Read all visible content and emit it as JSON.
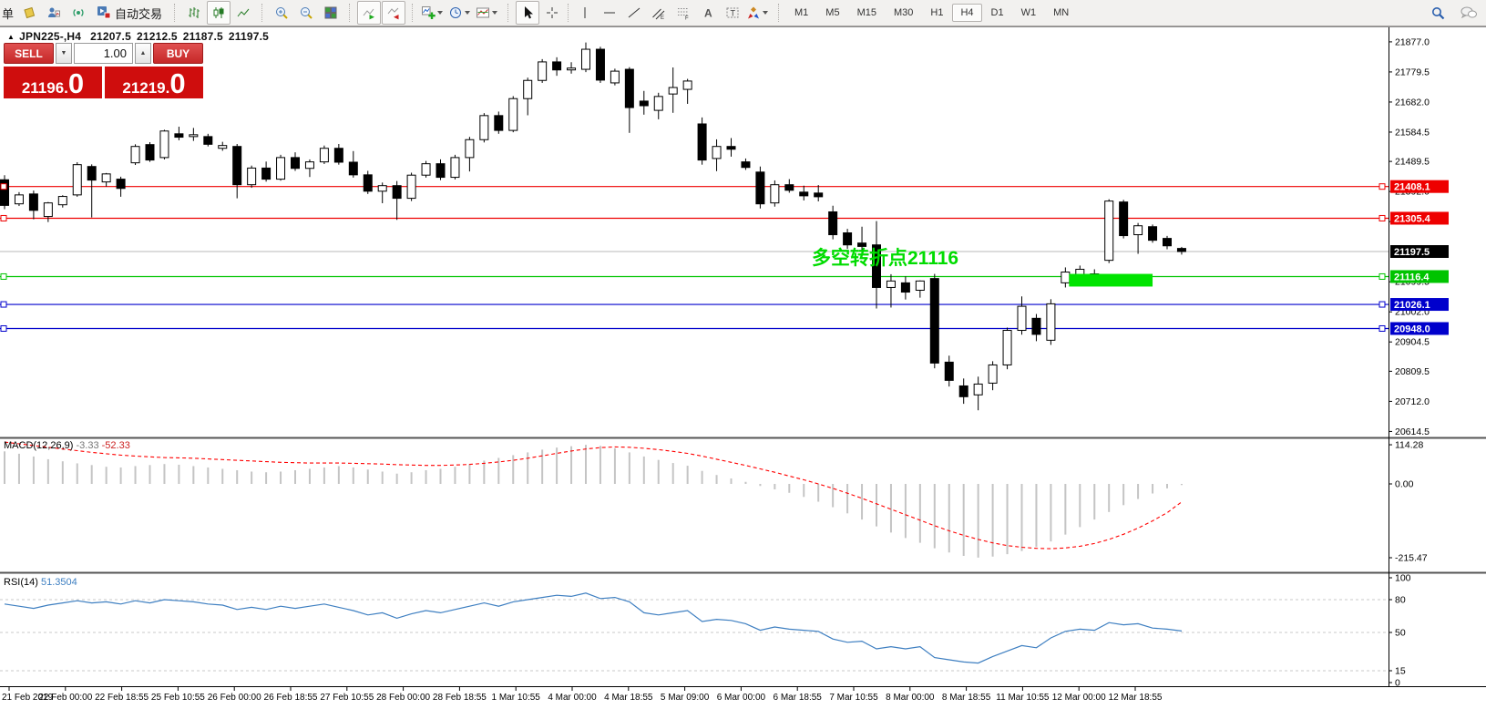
{
  "icons": {
    "title_marker": "▲",
    "spinner_down": "▼",
    "spinner_up": "▲"
  },
  "toolbar": {
    "cropped_button_label": "单",
    "autotrade_label": "自动交易",
    "timeframes": [
      {
        "label": "M1"
      },
      {
        "label": "M5"
      },
      {
        "label": "M15"
      },
      {
        "label": "M30"
      },
      {
        "label": "H1"
      },
      {
        "label": "H4",
        "active": true
      },
      {
        "label": "D1"
      },
      {
        "label": "W1"
      },
      {
        "label": "MN"
      }
    ]
  },
  "chart_header": {
    "symbol": "JPN225-,H4",
    "open": "21207.5",
    "high": "21212.5",
    "low": "21187.5",
    "close": "21197.5"
  },
  "trade_panel": {
    "sell_label": "SELL",
    "buy_label": "BUY",
    "volume": "1.00",
    "sell_price_int": "21196",
    "sell_price_dec": "0",
    "buy_price_int": "21219",
    "buy_price_dec": "0"
  },
  "chart_data": {
    "type": "candlestick",
    "symbol": "JPN225-",
    "timeframe": "H4",
    "main_panel": {
      "ylim": [
        20598,
        21924
      ],
      "price_ticks": [
        21877.0,
        21779.5,
        21682.0,
        21584.5,
        21489.5,
        21392.0,
        21294.5,
        21099.5,
        21002.0,
        20904.5,
        20809.5,
        20712.0,
        20614.5
      ],
      "hlines": [
        {
          "price": 21408.1,
          "label": "21408.1",
          "color": "#ee0000",
          "type": "resistance"
        },
        {
          "price": 21305.4,
          "label": "21305.4",
          "color": "#ee0000",
          "type": "resistance"
        },
        {
          "price": 21197.5,
          "label": "21197.5",
          "color": "#b8b8b8",
          "label_bg": "#000000",
          "type": "bid"
        },
        {
          "price": 21116.4,
          "label": "21116.4",
          "color": "#00c400",
          "type": "pivot"
        },
        {
          "price": 21026.1,
          "label": "21026.1",
          "color": "#0000cc",
          "type": "support"
        },
        {
          "price": 20948.0,
          "label": "20948.0",
          "color": "#0000cc",
          "type": "support"
        }
      ],
      "annotation": {
        "text": "多空转折点21116",
        "color": "#00dc00"
      },
      "highlight_box": {
        "bar_start": 73,
        "bar_end": 79,
        "price_top": 21125,
        "price_bottom": 21084,
        "color": "#00e400"
      },
      "candles_ohlc": [
        [
          21430,
          21445,
          21335,
          21347
        ],
        [
          21352,
          21390,
          21345,
          21381
        ],
        [
          21384,
          21395,
          21302,
          21331
        ],
        [
          21311,
          21358,
          21293,
          21355
        ],
        [
          21349,
          21380,
          21340,
          21376
        ],
        [
          21381,
          21487,
          21375,
          21479
        ],
        [
          21473,
          21480,
          21308,
          21429
        ],
        [
          21423,
          21452,
          21408,
          21449
        ],
        [
          21432,
          21440,
          21375,
          21402
        ],
        [
          21485,
          21545,
          21478,
          21538
        ],
        [
          21544,
          21552,
          21488,
          21494
        ],
        [
          21502,
          21592,
          21496,
          21588
        ],
        [
          21579,
          21602,
          21558,
          21568
        ],
        [
          21570,
          21598,
          21556,
          21576
        ],
        [
          21570,
          21579,
          21538,
          21545
        ],
        [
          21532,
          21553,
          21524,
          21541
        ],
        [
          21538,
          21546,
          21370,
          21414
        ],
        [
          21414,
          21476,
          21404,
          21468
        ],
        [
          21468,
          21489,
          21424,
          21432
        ],
        [
          21432,
          21511,
          21427,
          21502
        ],
        [
          21502,
          21519,
          21459,
          21467
        ],
        [
          21467,
          21496,
          21439,
          21488
        ],
        [
          21488,
          21541,
          21481,
          21532
        ],
        [
          21532,
          21546,
          21479,
          21487
        ],
        [
          21487,
          21523,
          21437,
          21446
        ],
        [
          21446,
          21459,
          21384,
          21393
        ],
        [
          21393,
          21421,
          21354,
          21411
        ],
        [
          21411,
          21426,
          21300,
          21370
        ],
        [
          21370,
          21453,
          21361,
          21445
        ],
        [
          21445,
          21491,
          21437,
          21482
        ],
        [
          21482,
          21496,
          21429,
          21438
        ],
        [
          21438,
          21511,
          21431,
          21502
        ],
        [
          21502,
          21569,
          21457,
          21560
        ],
        [
          21560,
          21646,
          21551,
          21638
        ],
        [
          21638,
          21651,
          21579,
          21590
        ],
        [
          21590,
          21701,
          21584,
          21693
        ],
        [
          21693,
          21761,
          21639,
          21752
        ],
        [
          21752,
          21821,
          21744,
          21812
        ],
        [
          21812,
          21827,
          21767,
          21786
        ],
        [
          21786,
          21811,
          21774,
          21792
        ],
        [
          21788,
          21875,
          21779,
          21853
        ],
        [
          21853,
          21861,
          21744,
          21753
        ],
        [
          21744,
          21790,
          21736,
          21782
        ],
        [
          21788,
          21795,
          21582,
          21664
        ],
        [
          21685,
          21718,
          21641,
          21670
        ],
        [
          21655,
          21712,
          21626,
          21700
        ],
        [
          21708,
          21794,
          21647,
          21729
        ],
        [
          21723,
          21757,
          21676,
          21750
        ],
        [
          21611,
          21632,
          21479,
          21494
        ],
        [
          21499,
          21561,
          21458,
          21538
        ],
        [
          21538,
          21565,
          21505,
          21529
        ],
        [
          21488,
          21499,
          21462,
          21470
        ],
        [
          21455,
          21473,
          21337,
          21352
        ],
        [
          21355,
          21428,
          21343,
          21414
        ],
        [
          21414,
          21432,
          21388,
          21396
        ],
        [
          21390,
          21411,
          21363,
          21378
        ],
        [
          21387,
          21413,
          21360,
          21375
        ],
        [
          21326,
          21346,
          21237,
          21252
        ],
        [
          21258,
          21271,
          21206,
          21219
        ],
        [
          21225,
          21278,
          21175,
          21214
        ],
        [
          21219,
          21296,
          21013,
          21081
        ],
        [
          21081,
          21124,
          21016,
          21102
        ],
        [
          21096,
          21117,
          21042,
          21066
        ],
        [
          21072,
          21104,
          21048,
          21102
        ],
        [
          21110,
          21125,
          20819,
          20836
        ],
        [
          20839,
          20860,
          20760,
          20780
        ],
        [
          20762,
          20786,
          20704,
          20727
        ],
        [
          20733,
          20792,
          20683,
          20768
        ],
        [
          20771,
          20842,
          20748,
          20830
        ],
        [
          20830,
          20951,
          20816,
          20942
        ],
        [
          20942,
          21052,
          20928,
          21020
        ],
        [
          20981,
          20995,
          20907,
          20929
        ],
        [
          20910,
          21043,
          20895,
          21028
        ],
        [
          21096,
          21146,
          21081,
          21131
        ],
        [
          21120,
          21152,
          21096,
          21140
        ],
        [
          21125,
          21140,
          21100,
          21112
        ],
        [
          21169,
          21367,
          21160,
          21361
        ],
        [
          21358,
          21365,
          21240,
          21249
        ],
        [
          21252,
          21290,
          21190,
          21281
        ],
        [
          21278,
          21285,
          21226,
          21234
        ],
        [
          21240,
          21248,
          21205,
          21216
        ],
        [
          21207.5,
          21212.5,
          21187.5,
          21197.5
        ]
      ]
    },
    "macd_panel": {
      "label": "MACD(12,26,9)",
      "value_main": "-3.33",
      "value_signal": "-52.33",
      "ticks": [
        114.28,
        0.0,
        -215.47
      ],
      "ylim": [
        -255,
        130
      ],
      "histogram": [
        95,
        88,
        80,
        72,
        66,
        60,
        55,
        50,
        48,
        52,
        55,
        58,
        56,
        52,
        48,
        44,
        40,
        36,
        34,
        36,
        40,
        44,
        48,
        52,
        48,
        42,
        36,
        30,
        34,
        40,
        44,
        50,
        58,
        68,
        76,
        84,
        92,
        100,
        106,
        110,
        114,
        111,
        104,
        92,
        80,
        70,
        61,
        53,
        38,
        26,
        16,
        6,
        -6,
        -16,
        -26,
        -38,
        -52,
        -68,
        -86,
        -104,
        -124,
        -142,
        -158,
        -172,
        -188,
        -200,
        -210,
        -215,
        -212,
        -205,
        -196,
        -184,
        -168,
        -148,
        -126,
        -104,
        -82,
        -62,
        -44,
        -28,
        -13,
        -3.33
      ],
      "signal": [
        122,
        117,
        112,
        107,
        102,
        97,
        92,
        88,
        84,
        81,
        79,
        77,
        76,
        75,
        73,
        71,
        69,
        67,
        65,
        63,
        62,
        61,
        61,
        61,
        60,
        59,
        58,
        56,
        55,
        54,
        54,
        55,
        57,
        60,
        64,
        69,
        75,
        82,
        89,
        96,
        102,
        106,
        108,
        107,
        104,
        100,
        95,
        89,
        81,
        72,
        63,
        54,
        44,
        34,
        23,
        12,
        0,
        -13,
        -27,
        -42,
        -58,
        -74,
        -90,
        -106,
        -122,
        -137,
        -150,
        -162,
        -172,
        -180,
        -185,
        -188,
        -189,
        -187,
        -182,
        -174,
        -162,
        -147,
        -129,
        -108,
        -84,
        -52.33
      ]
    },
    "rsi_panel": {
      "label": "RSI(14)",
      "value": "51.3504",
      "ticks": [
        100,
        80,
        50,
        15,
        0
      ],
      "levels": [
        80,
        50,
        15
      ],
      "ylim": [
        0,
        105
      ],
      "values": [
        76,
        74,
        72,
        75,
        77,
        79,
        77,
        78,
        76,
        79,
        77,
        80,
        79,
        78,
        76,
        75,
        71,
        73,
        71,
        74,
        72,
        74,
        76,
        73,
        70,
        66,
        68,
        63,
        67,
        70,
        68,
        71,
        74,
        77,
        74,
        78,
        80,
        82,
        84,
        83,
        86,
        81,
        82,
        78,
        68,
        66,
        68,
        70,
        60,
        62,
        61,
        58,
        52,
        55,
        53,
        52,
        51,
        44,
        41,
        42,
        35,
        37,
        35,
        37,
        27,
        25,
        23,
        22,
        28,
        33,
        38,
        36,
        45,
        51,
        53,
        52,
        59,
        57,
        58,
        54,
        53,
        51.35
      ]
    },
    "time_axis": {
      "labels": [
        "21 Feb 2019",
        "22 Feb 00:00",
        "22 Feb 18:55",
        "25 Feb 10:55",
        "26 Feb 00:00",
        "26 Feb 18:55",
        "27 Feb 10:55",
        "28 Feb 00:00",
        "28 Feb 18:55",
        "1 Mar 10:55",
        "4 Mar 00:00",
        "4 Mar 18:55",
        "5 Mar 09:00",
        "6 Mar 00:00",
        "6 Mar 18:55",
        "7 Mar 10:55",
        "8 Mar 00:00",
        "8 Mar 18:55",
        "11 Mar 10:55",
        "12 Mar 00:00",
        "12 Mar 18:55"
      ]
    },
    "colors": {
      "bull": "#ffffff",
      "bear": "#000000",
      "outline": "#000000",
      "macd_hist": "#c4c4c4",
      "macd_signal": "#ff0000",
      "rsi_line": "#3e7fc1",
      "level_dash": "#c8c8c8",
      "axis": "#000000"
    }
  }
}
